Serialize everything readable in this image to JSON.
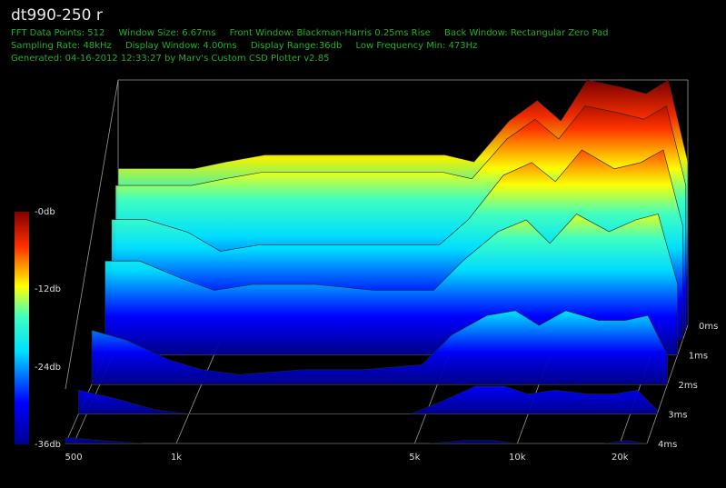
{
  "header": {
    "title": "dt990-250 r",
    "info_line1": [
      "FFT Data Points: 512",
      "Window Size: 6.67ms",
      "Front Window: Blackman-Harris 0.25ms Rise",
      "Back Window: Rectangular Zero Pad"
    ],
    "info_line2": [
      "Sampling Rate: 48kHz",
      "Display Window: 4.00ms",
      "Display Range:36db",
      "Low Frequency Min: 473Hz"
    ],
    "info_line3": [
      "Generated: 04-16-2012 12:33:27 by Marv's Custom CSD Plotter v2.85"
    ]
  },
  "colors": {
    "background": "#000000",
    "grid": "#9a9a9a",
    "info_text": "#1fae2a",
    "colormap": [
      "#00008f",
      "#0000ff",
      "#00ffff",
      "#ffff00",
      "#ff0000",
      "#800000"
    ]
  },
  "colorbar": {
    "labels": [
      "-0db",
      "-12db",
      "-24db",
      "-36db"
    ]
  },
  "chart_data": {
    "type": "area",
    "subtype": "cumulative spectral decay waterfall (3D)",
    "x_axis": {
      "scale": "log",
      "unit": "Hz",
      "range": [
        473,
        24000
      ],
      "ticks": [
        500,
        1000,
        5000,
        10000,
        20000
      ],
      "tick_labels": [
        "500",
        "1k",
        "5k",
        "10k",
        "20k"
      ]
    },
    "z_axis": {
      "unit": "ms",
      "range": [
        0,
        4
      ],
      "tick_labels": [
        "0ms",
        "1ms",
        "2ms",
        "3ms",
        "4ms"
      ]
    },
    "y_axis": {
      "unit": "db",
      "range": [
        -36,
        0
      ]
    },
    "x": [
      473,
      600,
      800,
      1000,
      1300,
      2000,
      3000,
      4500,
      5500,
      7000,
      8500,
      10000,
      12000,
      15000,
      18000,
      21000,
      24000
    ],
    "series": [
      {
        "time_ms": 0.0,
        "values": [
          -13,
          -13,
          -13,
          -12,
          -11,
          -11,
          -11,
          -11,
          -12,
          -6,
          -3,
          -6,
          0,
          -1,
          -2,
          0,
          -12
        ]
      },
      {
        "time_ms": 0.2,
        "values": [
          -14,
          -14,
          -14,
          -13,
          -12,
          -12,
          -12,
          -12,
          -13,
          -7,
          -4,
          -7,
          -2,
          -3,
          -4,
          -2,
          -14
        ]
      },
      {
        "time_ms": 0.5,
        "values": [
          -17,
          -17,
          -19,
          -22,
          -21,
          -21,
          -21,
          -21,
          -17,
          -10,
          -8,
          -11,
          -6,
          -9,
          -8,
          -6,
          -18
        ]
      },
      {
        "time_ms": 1.0,
        "values": [
          -20,
          -20,
          -23,
          -25,
          -24,
          -24,
          -25,
          -25,
          -20,
          -15,
          -13,
          -17,
          -12,
          -15,
          -13,
          -12,
          -24
        ]
      },
      {
        "time_ms": 2.0,
        "values": [
          -25,
          -27,
          -31,
          -33,
          -34,
          -33,
          -33,
          -32,
          -26,
          -22,
          -21,
          -24,
          -21,
          -23,
          -23,
          -22,
          -30
        ]
      },
      {
        "time_ms": 3.0,
        "values": [
          -30,
          -32,
          -35,
          -36,
          -36,
          -36,
          -36,
          -36,
          -33,
          -29,
          -29,
          -31,
          -30,
          -31,
          -31,
          -30,
          -35
        ]
      },
      {
        "time_ms": 4.0,
        "values": [
          -34,
          -35,
          -36,
          -36,
          -36,
          -36,
          -36,
          -36,
          -36,
          -35,
          -35,
          -36,
          -36,
          -36,
          -36,
          -35,
          -36
        ]
      }
    ]
  }
}
